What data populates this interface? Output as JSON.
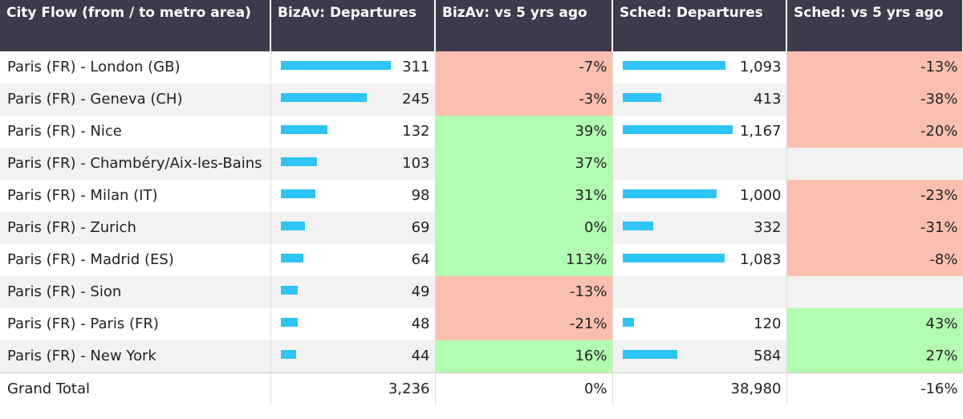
{
  "table": {
    "headers": [
      "City Flow (from / to metro area)",
      "BizAv: Departures",
      "BizAv: vs 5 yrs ago",
      "Sched: Departures",
      "Sched: vs 5 yrs ago"
    ],
    "rows": [
      {
        "city": "Paris (FR) - London (GB)",
        "bizav_departures": 311,
        "bizav_change": {
          "value": -7,
          "label": "-7%"
        },
        "sched_departures": {
          "value": 1093,
          "label": "1,093"
        },
        "sched_change": {
          "value": -13,
          "label": "-13%"
        }
      },
      {
        "city": "Paris (FR) - Geneva (CH)",
        "bizav_departures": 245,
        "bizav_change": {
          "value": -3,
          "label": "-3%"
        },
        "sched_departures": 413,
        "sched_change": {
          "value": -38,
          "label": "-38%"
        }
      },
      {
        "city": "Paris (FR) - Nice",
        "bizav_departures": 132,
        "bizav_change": {
          "value": 39,
          "label": "39%"
        },
        "sched_departures": {
          "value": 1167,
          "label": "1,167"
        },
        "sched_change": {
          "value": -20,
          "label": "-20%"
        }
      },
      {
        "city": "Paris (FR) - Chambéry/Aix-les-Bains",
        "bizav_departures": 103,
        "bizav_change": {
          "value": 37,
          "label": "37%"
        },
        "sched_departures": null,
        "sched_change": null
      },
      {
        "city": "Paris (FR) - Milan (IT)",
        "bizav_departures": 98,
        "bizav_change": {
          "value": 31,
          "label": "31%"
        },
        "sched_departures": {
          "value": 1000,
          "label": "1,000"
        },
        "sched_change": {
          "value": -23,
          "label": "-23%"
        }
      },
      {
        "city": "Paris (FR) - Zurich",
        "bizav_departures": 69,
        "bizav_change": {
          "value": 0,
          "label": "0%"
        },
        "sched_departures": 332,
        "sched_change": {
          "value": -31,
          "label": "-31%"
        }
      },
      {
        "city": "Paris (FR) - Madrid (ES)",
        "bizav_departures": 64,
        "bizav_change": {
          "value": 113,
          "label": "113%"
        },
        "sched_departures": {
          "value": 1083,
          "label": "1,083"
        },
        "sched_change": {
          "value": -8,
          "label": "-8%"
        }
      },
      {
        "city": "Paris (FR) - Sion",
        "bizav_departures": 49,
        "bizav_change": {
          "value": -13,
          "label": "-13%"
        },
        "sched_departures": null,
        "sched_change": null
      },
      {
        "city": "Paris (FR) - Paris (FR)",
        "bizav_departures": 48,
        "bizav_change": {
          "value": -21,
          "label": "-21%"
        },
        "sched_departures": 120,
        "sched_change": {
          "value": 43,
          "label": "43%"
        }
      },
      {
        "city": "Paris (FR) - New York",
        "bizav_departures": 44,
        "bizav_change": {
          "value": 16,
          "label": "16%"
        },
        "sched_departures": 584,
        "sched_change": {
          "value": 27,
          "label": "27%"
        }
      }
    ],
    "total": {
      "city": "Grand Total",
      "bizav_departures": "3,236",
      "bizav_change": "0%",
      "sched_departures": "38,980",
      "sched_change": "-16%"
    }
  },
  "bar_color": "#2ec4f5",
  "positive_color": "#b3fdb0",
  "negative_color": "#fbbfb0"
}
